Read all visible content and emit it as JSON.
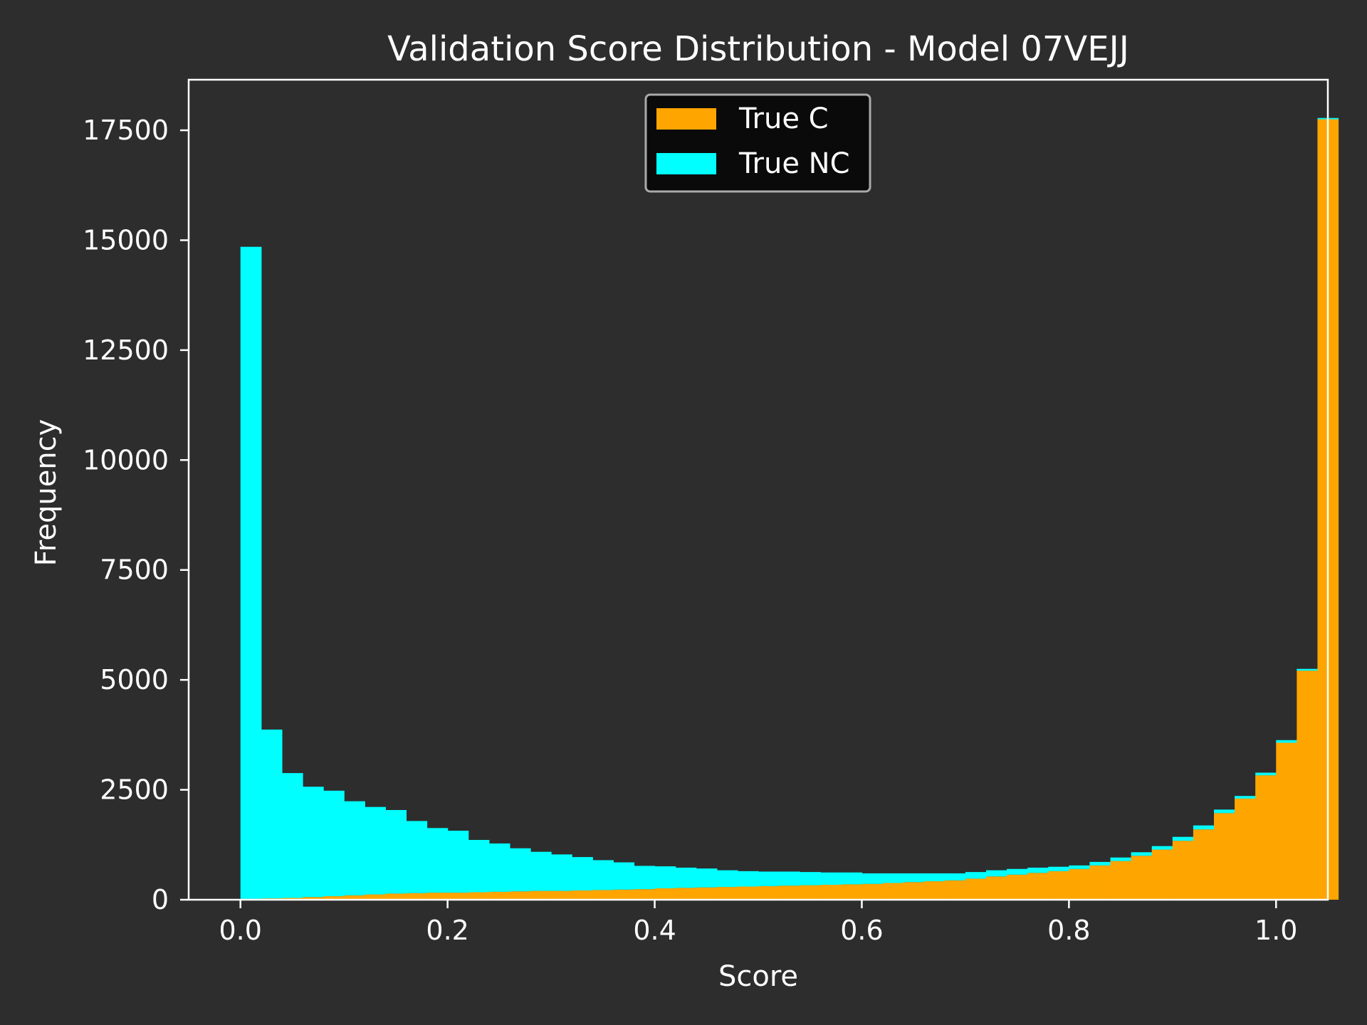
{
  "colors": {
    "background": "#2d2d2d",
    "axes_frame": "#ffffff",
    "text": "#ffffff",
    "true_c": "#ffa500",
    "true_nc": "#00ffff",
    "legend_bg": "#0a0a0a",
    "legend_border": "#aaaaaa"
  },
  "chart_data": {
    "type": "bar",
    "subtype": "stacked-histogram",
    "title": "Validation Score Distribution - Model 07VEJJ",
    "xlabel": "Score",
    "ylabel": "Frequency",
    "xlim": [
      -0.05,
      1.05
    ],
    "ylim": [
      0,
      18650
    ],
    "xticks": [
      0.0,
      0.2,
      0.4,
      0.6,
      0.8,
      1.0
    ],
    "xtick_labels": [
      "0.0",
      "0.2",
      "0.4",
      "0.6",
      "0.8",
      "1.0"
    ],
    "yticks": [
      0,
      2500,
      5000,
      7500,
      10000,
      12500,
      15000,
      17500
    ],
    "ytick_labels": [
      "0",
      "2500",
      "5000",
      "7500",
      "10000",
      "12500",
      "15000",
      "17500"
    ],
    "grid": false,
    "legend_position": "top-center",
    "bin_edges_start": 0.0,
    "bin_width": 0.02,
    "series": [
      {
        "name": "True C",
        "color": "#ffa500",
        "values": [
          20,
          30,
          40,
          60,
          80,
          100,
          120,
          140,
          150,
          160,
          160,
          170,
          180,
          190,
          200,
          200,
          210,
          220,
          230,
          240,
          260,
          270,
          280,
          290,
          300,
          310,
          320,
          330,
          340,
          350,
          360,
          380,
          400,
          420,
          440,
          480,
          530,
          570,
          610,
          650,
          700,
          780,
          880,
          1000,
          1140,
          1340,
          1600,
          1970,
          2300,
          2830,
          3570,
          5210,
          17750
        ]
      },
      {
        "name": "True NC",
        "color": "#00ffff",
        "values": [
          14830,
          3840,
          2840,
          2510,
          2400,
          2140,
          1990,
          1900,
          1640,
          1470,
          1410,
          1190,
          1100,
          980,
          890,
          830,
          760,
          680,
          620,
          530,
          500,
          460,
          430,
          380,
          350,
          330,
          320,
          300,
          280,
          270,
          240,
          220,
          200,
          180,
          160,
          150,
          140,
          130,
          120,
          100,
          80,
          80,
          80,
          80,
          80,
          90,
          90,
          80,
          60,
          60,
          60,
          40,
          30
        ]
      }
    ]
  }
}
